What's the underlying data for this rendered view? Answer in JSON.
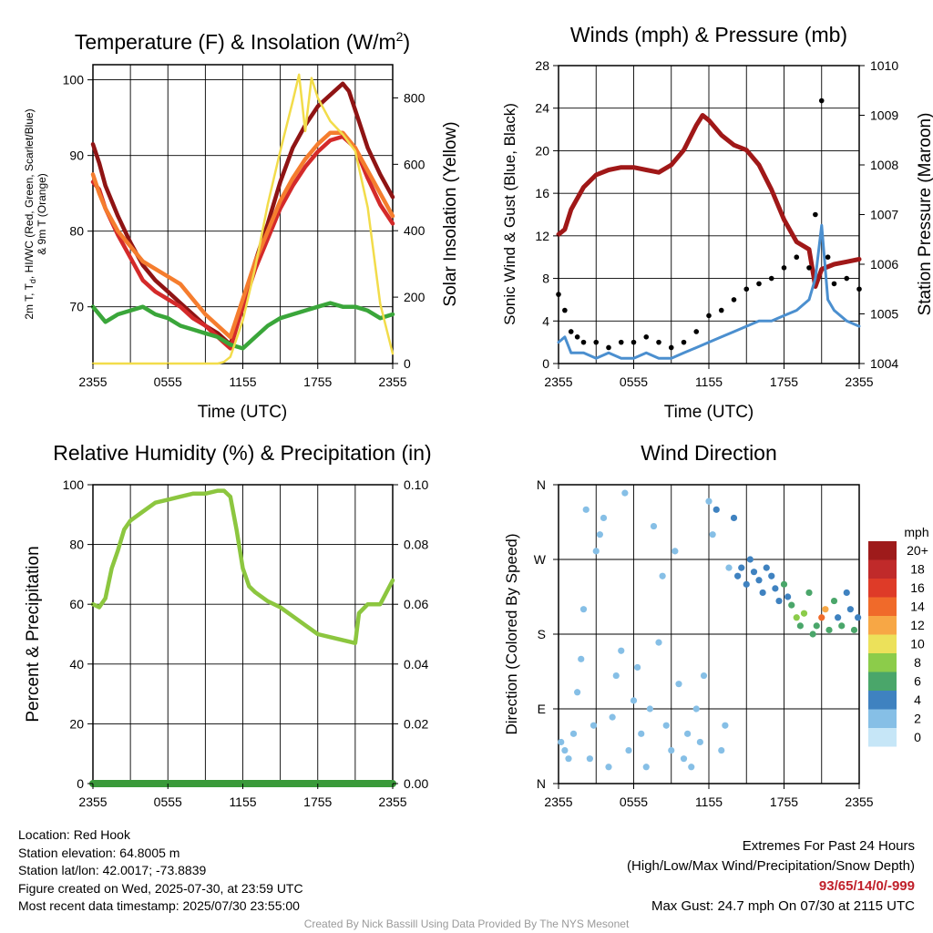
{
  "figure": {
    "footer_credit": "Created By Nick Bassill Using Data Provided By The NYS Mesonet",
    "station_info": [
      "Location: Red Hook",
      "Station elevation: 64.8005 m",
      "Station lat/lon: 42.0017; -73.8839",
      "Figure created on Wed, 2025-07-30, at 23:59 UTC",
      "Most recent data timestamp: 2025/07/30 23:55:00"
    ],
    "extremes": {
      "title": "Extremes For Past 24 Hours",
      "subtitle": "(High/Low/Max Wind/Precipitation/Snow Depth)",
      "values": "93/65/14/0/-999",
      "max_gust": "Max Gust: 24.7 mph On 07/30 at 2115 UTC"
    },
    "colors": {
      "temp_2m": "#d42a2a",
      "dewpoint": "#3aa63a",
      "heat_index": "#8f1414",
      "temp_9m": "#f57d2e",
      "insolation": "#f2dc4a",
      "rh": "#8cc63f",
      "precip": "#3a9a3a",
      "wind": "#4b8fcf",
      "gust": "#000000",
      "pressure": "#a01818"
    }
  },
  "chart_data": [
    {
      "type": "line",
      "title_main": "Temperature (F) & Insolation (W/m",
      "title_sup": "2",
      "title_end": ")",
      "xlabel": "Time (UTC)",
      "ylabel_left_1": "2m T, T",
      "ylabel_left_sub": "d",
      "ylabel_left_2": ", HI/WC (Red, Green, Scarlet/Blue)",
      "ylabel_left_3": "& 9m T (Orange)",
      "ylabel_right": "Solar Insolation (Yellow)",
      "x_ticks": [
        "2355",
        "0555",
        "1155",
        "1755",
        "2355"
      ],
      "x_range": [
        0,
        24
      ],
      "y_left_ticks": [
        70,
        80,
        90,
        100
      ],
      "y_left_range": [
        62.5,
        102
      ],
      "y_right_ticks": [
        0,
        200,
        400,
        600,
        800
      ],
      "y_right_range": [
        0,
        900
      ],
      "series": [
        {
          "key": "heat_index",
          "axis": "left",
          "color": "#8f1414",
          "x": [
            0,
            0.5,
            1,
            2,
            3,
            4,
            5,
            6,
            7,
            8,
            9,
            10,
            11,
            12,
            13,
            14,
            15,
            16,
            17,
            18,
            19,
            20,
            20.5,
            21,
            22,
            23,
            24
          ],
          "y": [
            91.5,
            89,
            86,
            82,
            78.5,
            75.5,
            73.5,
            72,
            70.5,
            69,
            67.5,
            66.5,
            65,
            70,
            76,
            81,
            86.5,
            91,
            94,
            96.5,
            98,
            99.5,
            98.5,
            96,
            91,
            87.5,
            84.5
          ]
        },
        {
          "key": "temp_2m",
          "axis": "left",
          "color": "#d42a2a",
          "x": [
            0,
            0.5,
            1,
            2,
            3,
            4,
            5,
            6,
            7,
            8,
            9,
            10,
            11,
            12,
            13,
            14,
            15,
            16,
            17,
            18,
            19,
            20,
            21,
            22,
            23,
            24
          ],
          "y": [
            86.5,
            85.5,
            83,
            79.5,
            76.5,
            73.5,
            72,
            71,
            70,
            68.5,
            67.5,
            66,
            64.5,
            70,
            75,
            79,
            83,
            86,
            88.5,
            90.5,
            92,
            92.5,
            91,
            87,
            83.5,
            81
          ]
        },
        {
          "key": "temp_9m",
          "axis": "left",
          "color": "#f57d2e",
          "x": [
            0,
            0.5,
            1,
            2,
            3,
            4,
            5,
            6,
            7,
            8,
            9,
            10,
            11,
            12,
            13,
            14,
            15,
            16,
            17,
            18,
            19,
            20,
            21,
            22,
            23,
            24
          ],
          "y": [
            87.5,
            85,
            83,
            80,
            78,
            76,
            75,
            74,
            73,
            71,
            69,
            67.5,
            66,
            71,
            76,
            80,
            84,
            87,
            89.5,
            91.5,
            93,
            93,
            91,
            88,
            85,
            82
          ]
        },
        {
          "key": "dewpoint",
          "axis": "left",
          "color": "#3aa63a",
          "x": [
            0,
            1,
            2,
            3,
            4,
            5,
            6,
            7,
            8,
            9,
            10,
            11,
            12,
            13,
            14,
            15,
            16,
            17,
            18,
            19,
            20,
            21,
            22,
            23,
            24
          ],
          "y": [
            70,
            68,
            69,
            69.5,
            70,
            69,
            68.5,
            67.5,
            67,
            66.5,
            66,
            65,
            64.5,
            66,
            67.5,
            68.5,
            69,
            69.5,
            70,
            70.5,
            70,
            70,
            69.5,
            68.5,
            69
          ]
        },
        {
          "key": "insolation",
          "axis": "right",
          "color": "#f2dc4a",
          "x": [
            0,
            6,
            10,
            10.5,
            11,
            12,
            13,
            14,
            15,
            16,
            16.5,
            17,
            17.5,
            18,
            19,
            20,
            21,
            22,
            23,
            24
          ],
          "y": [
            0,
            0,
            0,
            5,
            20,
            130,
            290,
            480,
            640,
            790,
            870,
            700,
            860,
            800,
            730,
            690,
            640,
            470,
            180,
            30
          ]
        }
      ]
    },
    {
      "type": "line",
      "title": "Winds (mph) & Pressure (mb)",
      "xlabel": "Time (UTC)",
      "ylabel_left": "Sonic Wind & Gust (Blue, Black)",
      "ylabel_right": "Station Pressure (Maroon)",
      "x_ticks": [
        "2355",
        "0555",
        "1155",
        "1755",
        "2355"
      ],
      "x_range": [
        0,
        24
      ],
      "y_left_ticks": [
        0,
        4,
        8,
        12,
        16,
        20,
        24,
        28
      ],
      "y_left_range": [
        0,
        28
      ],
      "y_right_ticks": [
        1004,
        1005,
        1006,
        1007,
        1008,
        1009,
        1010
      ],
      "y_right_range": [
        1004,
        1010
      ],
      "series": [
        {
          "key": "pressure",
          "axis": "right",
          "color": "#a01818",
          "x": [
            0,
            0.5,
            1,
            2,
            3,
            4,
            5,
            6,
            7,
            8,
            9,
            10,
            11,
            11.5,
            12,
            13,
            14,
            15,
            16,
            17,
            18,
            19,
            20,
            20.5,
            21,
            22,
            23,
            24
          ],
          "y": [
            1006.6,
            1006.7,
            1007.1,
            1007.55,
            1007.8,
            1007.9,
            1007.95,
            1007.95,
            1007.9,
            1007.85,
            1008.0,
            1008.3,
            1008.8,
            1009.0,
            1008.9,
            1008.6,
            1008.4,
            1008.3,
            1008.0,
            1007.5,
            1006.9,
            1006.45,
            1006.3,
            1005.55,
            1005.9,
            1006.0,
            1006.05,
            1006.1
          ]
        },
        {
          "key": "wind",
          "axis": "left",
          "color": "#4b8fcf",
          "x": [
            0,
            0.5,
            1,
            2,
            3,
            4,
            5,
            6,
            7,
            8,
            9,
            10,
            11,
            12,
            13,
            14,
            15,
            16,
            17,
            18,
            19,
            20,
            20.5,
            21,
            21.5,
            22,
            23,
            24
          ],
          "y": [
            2,
            2.5,
            1,
            1,
            0.5,
            1,
            0.5,
            0.5,
            1,
            0.5,
            0.5,
            1,
            1.5,
            2,
            2.5,
            3,
            3.5,
            4,
            4,
            4.5,
            5,
            6,
            8,
            13,
            6,
            5,
            4,
            3.5
          ]
        },
        {
          "key": "gust",
          "axis": "left",
          "color": "#000000",
          "style": "dots",
          "x": [
            0,
            0.5,
            1,
            1.5,
            2,
            3,
            4,
            5,
            6,
            7,
            8,
            9,
            10,
            11,
            12,
            13,
            14,
            15,
            16,
            17,
            18,
            19,
            20,
            20.5,
            21,
            21.5,
            22,
            23,
            24
          ],
          "y": [
            6.5,
            5,
            3,
            2.5,
            2,
            2,
            1.5,
            2,
            2,
            2.5,
            2,
            1.5,
            2,
            3,
            4.5,
            5,
            6,
            7,
            7.5,
            8,
            9,
            10,
            9,
            14,
            24.7,
            10,
            7.5,
            8,
            7
          ]
        }
      ]
    },
    {
      "type": "line",
      "title": "Relative Humidity (%) & Precipitation (in)",
      "xlabel": "",
      "ylabel_left": "Percent & Precipitation",
      "x_ticks": [
        "2355",
        "0555",
        "1155",
        "1755",
        "2355"
      ],
      "x_range": [
        0,
        24
      ],
      "y_left_ticks": [
        0,
        20,
        40,
        60,
        80,
        100
      ],
      "y_left_range": [
        0,
        100
      ],
      "y_right_ticks": [
        "0.00",
        "0.02",
        "0.04",
        "0.06",
        "0.08",
        "0.10"
      ],
      "y_right_range": [
        0,
        0.1
      ],
      "series": [
        {
          "key": "rh",
          "axis": "left",
          "color": "#8cc63f",
          "x": [
            0,
            0.5,
            1,
            1.5,
            2,
            2.5,
            3,
            4,
            5,
            6,
            7,
            8,
            9,
            10,
            10.5,
            11,
            11.5,
            12,
            12.5,
            13,
            14,
            15,
            16,
            17,
            18,
            19,
            20,
            21,
            21.3,
            22,
            23,
            24
          ],
          "y": [
            60,
            59,
            62,
            72,
            78,
            85,
            88,
            91,
            94,
            95,
            96,
            97,
            97,
            98,
            98,
            96,
            85,
            72,
            66,
            64,
            61,
            59,
            56,
            53,
            50,
            49,
            48,
            47,
            57,
            60,
            60,
            68
          ]
        },
        {
          "key": "precip",
          "axis": "right",
          "color": "#3a9a3a",
          "x": [
            0,
            24
          ],
          "y": [
            0,
            0
          ]
        }
      ]
    },
    {
      "type": "scatter",
      "title": "Wind Direction",
      "ylabel": "Direction (Colored By Speed)",
      "x_ticks": [
        "2355",
        "0555",
        "1155",
        "1755",
        "2355"
      ],
      "x_range": [
        0,
        24
      ],
      "y_ticks": [
        "N",
        "E",
        "S",
        "W",
        "N"
      ],
      "y_range": [
        0,
        360
      ],
      "colorbar": {
        "unit": "mph",
        "labels": [
          "20+",
          "18",
          "16",
          "14",
          "12",
          "10",
          "8",
          "6",
          "4",
          "2",
          "0"
        ],
        "colors": [
          "#9e1b1b",
          "#c02a2a",
          "#de3b28",
          "#f06a2a",
          "#f7a745",
          "#ece15a",
          "#8ccc4a",
          "#4aa66a",
          "#3f82c0",
          "#86bfe6",
          "#c6e6f7"
        ]
      },
      "points": [
        {
          "x": 0.2,
          "y": 50,
          "s": 2
        },
        {
          "x": 0.5,
          "y": 40,
          "s": 1
        },
        {
          "x": 0.8,
          "y": 30,
          "s": 1
        },
        {
          "x": 1.2,
          "y": 60,
          "s": 1
        },
        {
          "x": 1.5,
          "y": 110,
          "s": 1
        },
        {
          "x": 1.8,
          "y": 150,
          "s": 1
        },
        {
          "x": 2.0,
          "y": 210,
          "s": 1
        },
        {
          "x": 2.2,
          "y": 330,
          "s": 1
        },
        {
          "x": 2.5,
          "y": 30,
          "s": 1
        },
        {
          "x": 2.8,
          "y": 70,
          "s": 1
        },
        {
          "x": 3.0,
          "y": 280,
          "s": 1
        },
        {
          "x": 3.3,
          "y": 300,
          "s": 1
        },
        {
          "x": 3.6,
          "y": 320,
          "s": 1
        },
        {
          "x": 4.0,
          "y": 20,
          "s": 1
        },
        {
          "x": 4.3,
          "y": 80,
          "s": 1
        },
        {
          "x": 4.6,
          "y": 130,
          "s": 1
        },
        {
          "x": 5.0,
          "y": 160,
          "s": 1
        },
        {
          "x": 5.3,
          "y": 350,
          "s": 1
        },
        {
          "x": 5.6,
          "y": 40,
          "s": 1
        },
        {
          "x": 6.0,
          "y": 100,
          "s": 1
        },
        {
          "x": 6.3,
          "y": 140,
          "s": 1
        },
        {
          "x": 6.6,
          "y": 60,
          "s": 1
        },
        {
          "x": 7.0,
          "y": 20,
          "s": 1
        },
        {
          "x": 7.3,
          "y": 90,
          "s": 1
        },
        {
          "x": 7.6,
          "y": 310,
          "s": 1
        },
        {
          "x": 8.0,
          "y": 170,
          "s": 1
        },
        {
          "x": 8.3,
          "y": 250,
          "s": 1
        },
        {
          "x": 8.6,
          "y": 70,
          "s": 1
        },
        {
          "x": 9.0,
          "y": 40,
          "s": 1
        },
        {
          "x": 9.3,
          "y": 280,
          "s": 1
        },
        {
          "x": 9.6,
          "y": 120,
          "s": 1
        },
        {
          "x": 10.0,
          "y": 30,
          "s": 1
        },
        {
          "x": 10.3,
          "y": 60,
          "s": 1
        },
        {
          "x": 10.6,
          "y": 20,
          "s": 1
        },
        {
          "x": 11.0,
          "y": 90,
          "s": 1
        },
        {
          "x": 11.3,
          "y": 50,
          "s": 1
        },
        {
          "x": 11.6,
          "y": 130,
          "s": 1
        },
        {
          "x": 12.0,
          "y": 340,
          "s": 2
        },
        {
          "x": 12.3,
          "y": 300,
          "s": 2
        },
        {
          "x": 12.6,
          "y": 330,
          "s": 3
        },
        {
          "x": 13.0,
          "y": 40,
          "s": 2
        },
        {
          "x": 13.3,
          "y": 70,
          "s": 2
        },
        {
          "x": 13.6,
          "y": 260,
          "s": 2
        },
        {
          "x": 14.0,
          "y": 320,
          "s": 3
        },
        {
          "x": 14.3,
          "y": 250,
          "s": 3
        },
        {
          "x": 14.6,
          "y": 260,
          "s": 3
        },
        {
          "x": 15.0,
          "y": 240,
          "s": 3
        },
        {
          "x": 15.3,
          "y": 270,
          "s": 3
        },
        {
          "x": 15.6,
          "y": 255,
          "s": 3
        },
        {
          "x": 16.0,
          "y": 245,
          "s": 4
        },
        {
          "x": 16.3,
          "y": 230,
          "s": 3
        },
        {
          "x": 16.6,
          "y": 260,
          "s": 4
        },
        {
          "x": 17.0,
          "y": 250,
          "s": 4
        },
        {
          "x": 17.3,
          "y": 235,
          "s": 4
        },
        {
          "x": 17.6,
          "y": 220,
          "s": 4
        },
        {
          "x": 18.0,
          "y": 240,
          "s": 5
        },
        {
          "x": 18.3,
          "y": 225,
          "s": 4
        },
        {
          "x": 18.6,
          "y": 215,
          "s": 6
        },
        {
          "x": 19.0,
          "y": 200,
          "s": 7
        },
        {
          "x": 19.3,
          "y": 190,
          "s": 6
        },
        {
          "x": 19.6,
          "y": 205,
          "s": 7
        },
        {
          "x": 20.0,
          "y": 230,
          "s": 5
        },
        {
          "x": 20.3,
          "y": 180,
          "s": 6
        },
        {
          "x": 20.6,
          "y": 190,
          "s": 6
        },
        {
          "x": 21.0,
          "y": 200,
          "s": 13
        },
        {
          "x": 21.3,
          "y": 210,
          "s": 11
        },
        {
          "x": 21.6,
          "y": 185,
          "s": 6
        },
        {
          "x": 22.0,
          "y": 220,
          "s": 5
        },
        {
          "x": 22.3,
          "y": 200,
          "s": 4
        },
        {
          "x": 22.6,
          "y": 190,
          "s": 5
        },
        {
          "x": 23.0,
          "y": 230,
          "s": 4
        },
        {
          "x": 23.3,
          "y": 210,
          "s": 4
        },
        {
          "x": 23.6,
          "y": 185,
          "s": 6
        },
        {
          "x": 23.9,
          "y": 200,
          "s": 4
        }
      ]
    }
  ]
}
